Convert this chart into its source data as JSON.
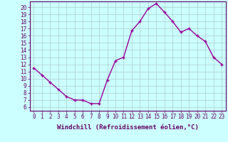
{
  "x": [
    0,
    1,
    2,
    3,
    4,
    5,
    6,
    7,
    8,
    9,
    10,
    11,
    12,
    13,
    14,
    15,
    16,
    17,
    18,
    19,
    20,
    21,
    22,
    23
  ],
  "y": [
    11.5,
    10.5,
    9.5,
    8.5,
    7.5,
    7.0,
    7.0,
    6.5,
    6.5,
    9.8,
    12.5,
    13.0,
    16.7,
    18.0,
    19.8,
    20.5,
    19.3,
    18.0,
    16.5,
    17.0,
    16.0,
    15.2,
    13.0,
    12.0
  ],
  "line_color": "#990099",
  "marker": "+",
  "marker_size": 3,
  "linewidth": 1.0,
  "xlabel": "Windchill (Refroidissement éolien,°C)",
  "xlabel_fontsize": 6.5,
  "ylabel_ticks": [
    6,
    7,
    8,
    9,
    10,
    11,
    12,
    13,
    14,
    15,
    16,
    17,
    18,
    19,
    20
  ],
  "xlim": [
    -0.5,
    23.5
  ],
  "ylim": [
    5.5,
    20.8
  ],
  "background_color": "#ccffff",
  "grid_color": "#aacccc",
  "tick_label_fontsize": 5.5,
  "tick_color": "#660066",
  "spine_color": "#660066",
  "xlabel_fontweight": "bold"
}
